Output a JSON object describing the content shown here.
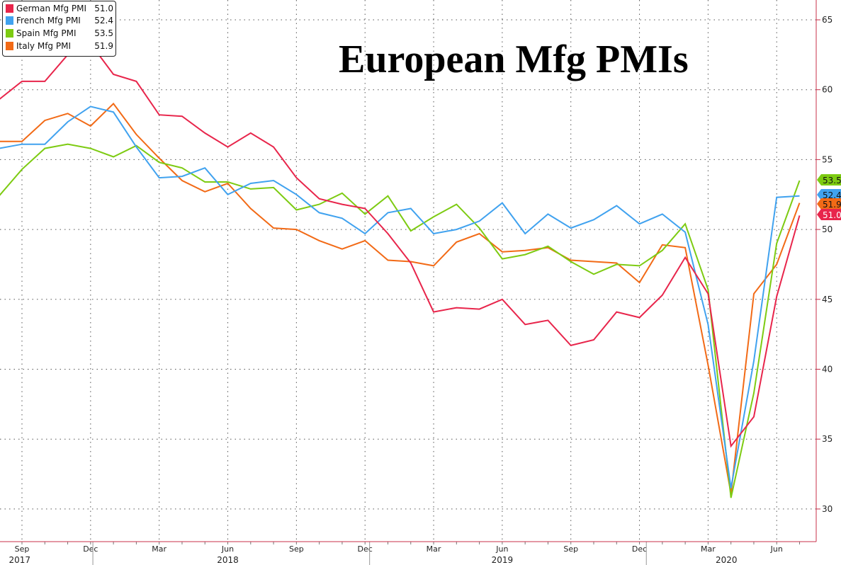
{
  "chart_data": {
    "type": "line",
    "title": "European Mfg PMIs",
    "xlabel": "",
    "ylabel": "",
    "ylim": [
      29,
      66
    ],
    "yticks": [
      30,
      35,
      40,
      45,
      50,
      55,
      60,
      65
    ],
    "y_axis_side": "right",
    "grid": true,
    "legend_position": "top-left",
    "x": [
      "Aug 2017",
      "Sep 2017",
      "Oct 2017",
      "Nov 2017",
      "Dec 2017",
      "Jan 2018",
      "Feb 2018",
      "Mar 2018",
      "Apr 2018",
      "May 2018",
      "Jun 2018",
      "Jul 2018",
      "Aug 2018",
      "Sep 2018",
      "Oct 2018",
      "Nov 2018",
      "Dec 2018",
      "Jan 2019",
      "Feb 2019",
      "Mar 2019",
      "Apr 2019",
      "May 2019",
      "Jun 2019",
      "Jul 2019",
      "Aug 2019",
      "Sep 2019",
      "Oct 2019",
      "Nov 2019",
      "Dec 2019",
      "Jan 2020",
      "Feb 2020",
      "Mar 2020",
      "Apr 2020",
      "May 2020",
      "Jun 2020",
      "Jul 2020"
    ],
    "xticks": [
      {
        "label": "Sep",
        "index": 1
      },
      {
        "label": "Dec",
        "index": 4
      },
      {
        "label": "Mar",
        "index": 7
      },
      {
        "label": "Jun",
        "index": 10
      },
      {
        "label": "Sep",
        "index": 13
      },
      {
        "label": "Dec",
        "index": 16
      },
      {
        "label": "Mar",
        "index": 19
      },
      {
        "label": "Jun",
        "index": 22
      },
      {
        "label": "Sep",
        "index": 25
      },
      {
        "label": "Dec",
        "index": 28
      },
      {
        "label": "Mar",
        "index": 31
      },
      {
        "label": "Jun",
        "index": 34
      }
    ],
    "years": [
      {
        "label": "2017",
        "index": 0.9
      },
      {
        "label": "2018",
        "index": 10
      },
      {
        "label": "2019",
        "index": 22
      },
      {
        "label": "2020",
        "index": 31.8
      }
    ],
    "year_separators": [
      4.1,
      16.2,
      28.3
    ],
    "series": [
      {
        "name": "German Mfg PMI",
        "last": "51.0",
        "color": "#e8254b",
        "values": [
          59.3,
          60.6,
          60.6,
          62.5,
          63.3,
          61.1,
          60.6,
          58.2,
          58.1,
          56.9,
          55.9,
          56.9,
          55.9,
          53.7,
          52.2,
          51.8,
          51.5,
          49.7,
          47.6,
          44.1,
          44.4,
          44.3,
          45.0,
          43.2,
          43.5,
          41.7,
          42.1,
          44.1,
          43.7,
          45.3,
          48.0,
          45.4,
          34.5,
          36.6,
          45.2,
          51.0
        ]
      },
      {
        "name": "French Mfg PMI",
        "last": "52.4",
        "color": "#40a2ef",
        "values": [
          55.8,
          56.1,
          56.1,
          57.7,
          58.8,
          58.4,
          55.9,
          53.7,
          53.8,
          54.4,
          52.5,
          53.3,
          53.5,
          52.5,
          51.2,
          50.8,
          49.7,
          51.2,
          51.5,
          49.7,
          50.0,
          50.6,
          51.9,
          49.7,
          51.1,
          50.1,
          50.7,
          51.7,
          50.4,
          51.1,
          49.8,
          43.2,
          31.5,
          40.6,
          52.3,
          52.4
        ]
      },
      {
        "name": "Spain Mfg PMI",
        "last": "53.5",
        "color": "#7dcb12",
        "values": [
          52.4,
          54.3,
          55.8,
          56.1,
          55.8,
          55.2,
          56.0,
          54.8,
          54.4,
          53.4,
          53.4,
          52.9,
          53.0,
          51.4,
          51.8,
          52.6,
          51.1,
          52.4,
          49.9,
          50.9,
          51.8,
          50.1,
          47.9,
          48.2,
          48.8,
          47.7,
          46.8,
          47.5,
          47.4,
          48.5,
          50.4,
          45.7,
          30.8,
          38.3,
          49.0,
          53.5
        ]
      },
      {
        "name": "Italy Mfg PMI",
        "last": "51.9",
        "color": "#f26a16",
        "values": [
          56.3,
          56.3,
          57.8,
          58.3,
          57.4,
          59.0,
          56.8,
          55.1,
          53.5,
          52.7,
          53.3,
          51.5,
          50.1,
          50.0,
          49.2,
          48.6,
          49.2,
          47.8,
          47.7,
          47.4,
          49.1,
          49.7,
          48.4,
          48.5,
          48.7,
          47.8,
          47.7,
          47.6,
          46.2,
          48.9,
          48.7,
          40.3,
          31.1,
          45.4,
          47.5,
          51.9
        ]
      }
    ],
    "end_labels_order": [
      "Spain Mfg PMI",
      "French Mfg PMI",
      "Italy Mfg PMI",
      "German Mfg PMI"
    ]
  }
}
